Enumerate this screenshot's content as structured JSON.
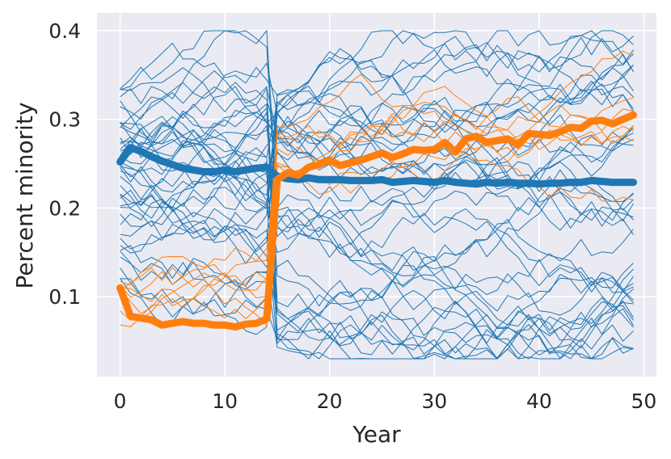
{
  "chart_data": {
    "type": "line",
    "title": "",
    "xlabel": "Year",
    "ylabel": "Percent minority",
    "xlim": [
      -2.2,
      51.2
    ],
    "ylim": [
      0.01,
      0.42
    ],
    "xticks": [
      0,
      10,
      20,
      30,
      40,
      50
    ],
    "yticks": [
      0.1,
      0.2,
      0.3,
      0.4
    ],
    "xtick_labels": [
      "0",
      "10",
      "20",
      "30",
      "40",
      "50"
    ],
    "ytick_labels": [
      "0.1",
      "0.2",
      "0.3",
      "0.4"
    ],
    "grid": true,
    "legend": "none",
    "background_color": "#eaeaf2",
    "colors": {
      "blue": "#1f77b4",
      "orange": "#ff7f0e",
      "grid": "#ffffff"
    },
    "x": [
      0,
      1,
      2,
      3,
      4,
      5,
      6,
      7,
      8,
      9,
      10,
      11,
      12,
      13,
      14,
      15,
      16,
      17,
      18,
      19,
      20,
      21,
      22,
      23,
      24,
      25,
      26,
      27,
      28,
      29,
      30,
      31,
      32,
      33,
      34,
      35,
      36,
      37,
      38,
      39,
      40,
      41,
      42,
      43,
      44,
      45,
      46,
      47,
      48,
      49
    ],
    "series": [
      {
        "color": "#1f77b4",
        "style": "thick",
        "values": [
          0.252,
          0.268,
          0.264,
          0.258,
          0.253,
          0.249,
          0.245,
          0.243,
          0.241,
          0.241,
          0.243,
          0.241,
          0.243,
          0.245,
          0.246,
          0.236,
          0.233,
          0.232,
          0.234,
          0.232,
          0.232,
          0.232,
          0.231,
          0.231,
          0.231,
          0.232,
          0.229,
          0.23,
          0.231,
          0.23,
          0.229,
          0.231,
          0.229,
          0.228,
          0.227,
          0.229,
          0.228,
          0.229,
          0.228,
          0.228,
          0.227,
          0.228,
          0.228,
          0.229,
          0.229,
          0.231,
          0.23,
          0.229,
          0.229,
          0.229
        ]
      },
      {
        "color": "#ff7f0e",
        "style": "thick",
        "values": [
          0.11,
          0.078,
          0.076,
          0.074,
          0.068,
          0.07,
          0.072,
          0.07,
          0.07,
          0.068,
          0.068,
          0.066,
          0.069,
          0.07,
          0.075,
          0.232,
          0.24,
          0.237,
          0.246,
          0.249,
          0.254,
          0.248,
          0.251,
          0.254,
          0.258,
          0.262,
          0.257,
          0.261,
          0.266,
          0.265,
          0.266,
          0.274,
          0.263,
          0.278,
          0.281,
          0.274,
          0.276,
          0.278,
          0.271,
          0.284,
          0.283,
          0.282,
          0.286,
          0.291,
          0.29,
          0.298,
          0.299,
          0.295,
          0.3,
          0.305
        ]
      }
    ]
  }
}
